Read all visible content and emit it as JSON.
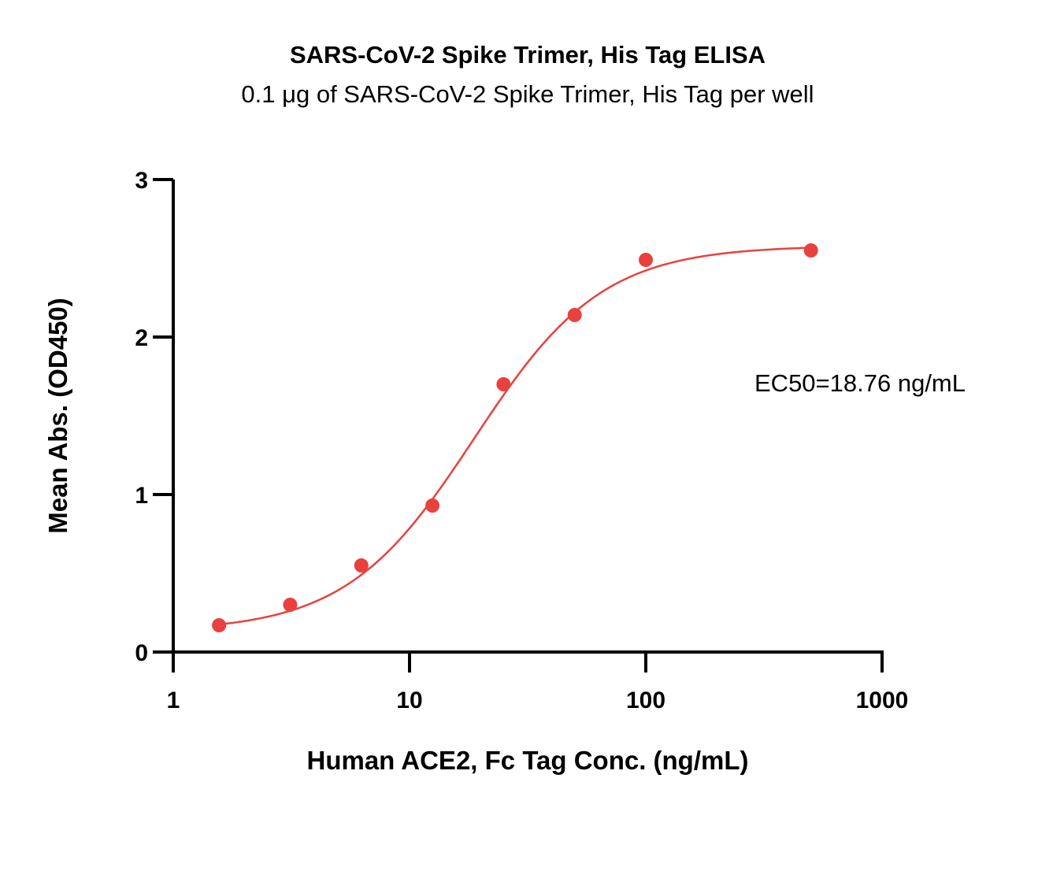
{
  "chart_data": {
    "type": "scatter",
    "title": "SARS-CoV-2 Spike Trimer, His Tag ELISA",
    "subtitle": "0.1 μg of SARS-CoV-2 Spike Trimer, His Tag per well",
    "xlabel": "Human ACE2, Fc Tag Conc. (ng/mL)",
    "ylabel": "Mean Abs. (OD450)",
    "xscale": "log",
    "xlim": [
      1,
      1000
    ],
    "ylim": [
      0,
      3
    ],
    "xticks": [
      "1",
      "10",
      "100",
      "1000"
    ],
    "yticks": [
      "0",
      "1",
      "2",
      "3"
    ],
    "grid": false,
    "legend": "none",
    "color": "#e8413e",
    "series": [
      {
        "x": [
          1.5625,
          3.125,
          6.25,
          12.5,
          25,
          50,
          100,
          500
        ],
        "y": [
          0.17,
          0.3,
          0.55,
          0.93,
          1.7,
          2.14,
          2.49,
          2.55
        ]
      }
    ],
    "fit_curve": {
      "model": "4PL",
      "bottom": 0.13,
      "top": 2.58,
      "ec50": 18.76,
      "hill": 1.6
    },
    "annotation": "EC50=18.76 ng/mL"
  }
}
